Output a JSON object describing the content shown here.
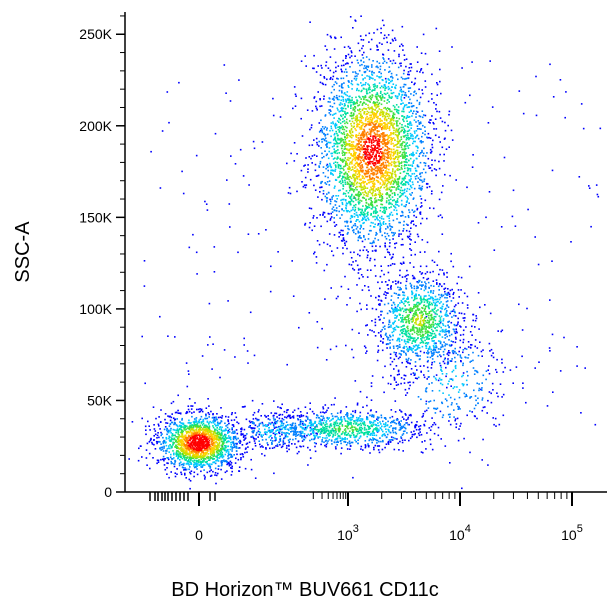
{
  "chart_data": {
    "type": "scatter",
    "subtype": "flow-cytometry-pseudocolor-density",
    "title": "",
    "xlabel": "BD Horizon™ BUV661 CD11c",
    "ylabel": "SSC-A",
    "x_scale": "biexponential",
    "x_tick_labels": [
      {
        "value": 0,
        "base": "0",
        "exp": ""
      },
      {
        "value": 1000,
        "base": "10",
        "exp": "3"
      },
      {
        "value": 10000,
        "base": "10",
        "exp": "4"
      },
      {
        "value": 100000,
        "base": "10",
        "exp": "5"
      }
    ],
    "y_scale": "linear",
    "ylim": [
      0,
      262144
    ],
    "y_ticks": [
      {
        "value": 0,
        "label": "0"
      },
      {
        "value": 50000,
        "label": "50K"
      },
      {
        "value": 100000,
        "label": "100K"
      },
      {
        "value": 150000,
        "label": "150K"
      },
      {
        "value": 200000,
        "label": "200K"
      },
      {
        "value": 250000,
        "label": "250K"
      }
    ],
    "grid": false,
    "legend": "none",
    "colormap": [
      "#0000ff",
      "#0080ff",
      "#00c8ff",
      "#00e0a0",
      "#40e040",
      "#c8e000",
      "#ffd000",
      "#ff8000",
      "#ff0000"
    ],
    "populations": [
      {
        "name": "CD11c-negative low SSC",
        "x_center": 0,
        "y_center": 24000,
        "relative_density": "highest"
      },
      {
        "name": "CD11c-positive high SSC",
        "x_center": 2000,
        "y_center": 185000,
        "relative_density": "high"
      },
      {
        "name": "CD11c-bright mid SSC",
        "x_center": 5000,
        "y_center": 88000,
        "relative_density": "medium"
      },
      {
        "name": "CD11c-intermediate low SSC",
        "x_center": 2500,
        "y_center": 30000,
        "relative_density": "medium"
      }
    ]
  }
}
